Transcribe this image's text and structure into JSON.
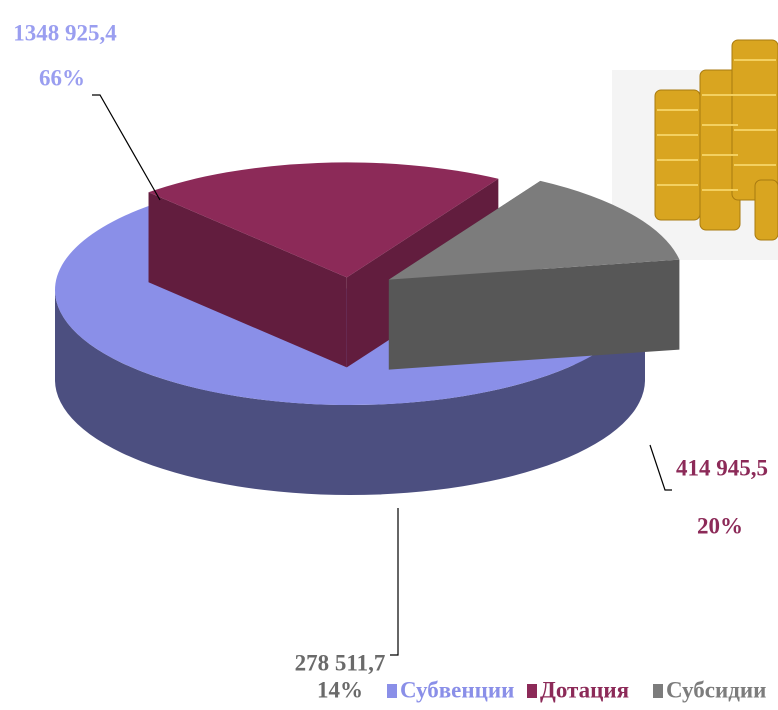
{
  "chart_data": {
    "type": "pie",
    "categories": [
      "Субвенции",
      "Дотация",
      "Субсидии"
    ],
    "values": [
      1348925.4,
      414945.5,
      278511.7
    ],
    "value_labels": [
      "1348 925,4",
      "414 945,5",
      "278 511,7"
    ],
    "percents": [
      66,
      20,
      14
    ],
    "percent_labels": [
      "66%",
      "20%",
      "14%"
    ],
    "colors": [
      "#8a8fe8",
      "#8c2a58",
      "#7c7c7c"
    ],
    "legend": "bottom"
  }
}
